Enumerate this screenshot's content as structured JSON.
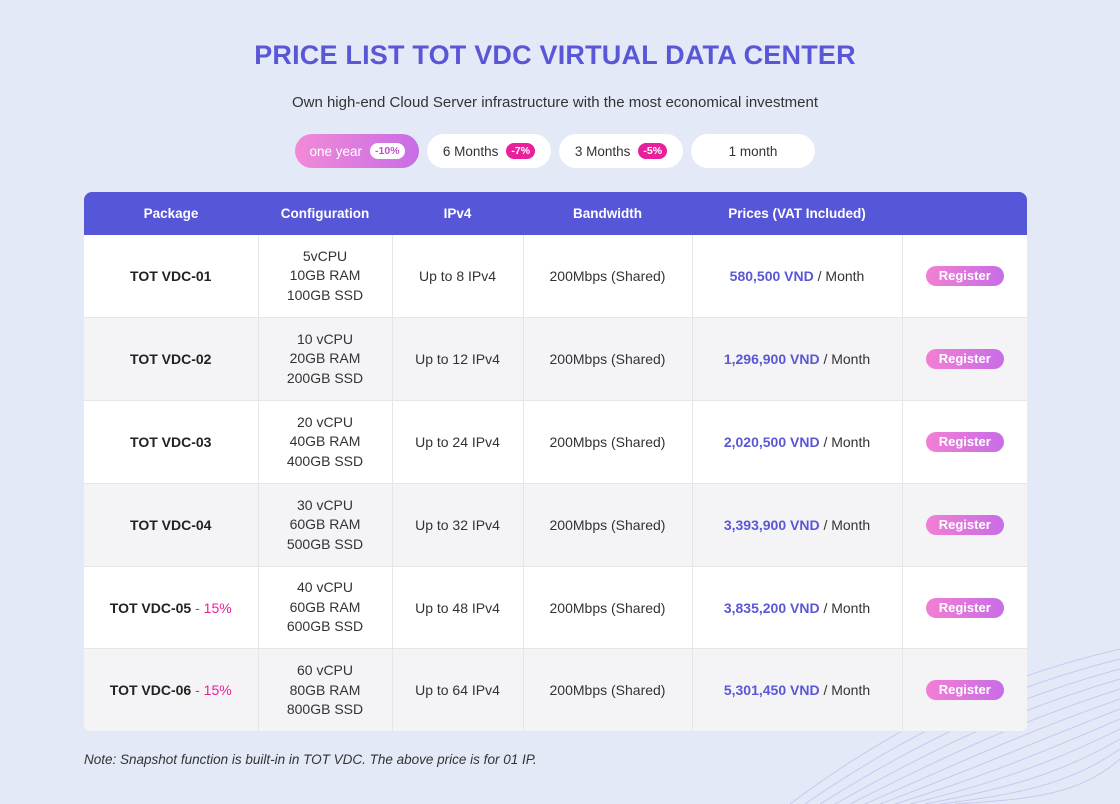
{
  "title": "PRICE LIST TOT VDC VIRTUAL DATA CENTER",
  "subtitle": "Own high-end Cloud Server infrastructure with the most economical investment",
  "tabs": [
    {
      "label": "one year",
      "badge": "-10%",
      "active": true
    },
    {
      "label": "6 Months",
      "badge": "-7%",
      "active": false
    },
    {
      "label": "3 Months",
      "badge": "-5%",
      "active": false
    },
    {
      "label": "1 month",
      "badge": "",
      "active": false
    }
  ],
  "table": {
    "headers": [
      "Package",
      "Configuration",
      "IPv4",
      "Bandwidth",
      "Prices (VAT Included)",
      ""
    ],
    "rows": [
      {
        "package": "TOT VDC-01",
        "discount": "",
        "cpu": "5vCPU",
        "ram": "10GB RAM",
        "ssd": "100GB SSD",
        "ipv4": "Up to 8 IPv4",
        "bandwidth": "200Mbps (Shared)",
        "price": "580,500 VND",
        "period": " / Month",
        "button": "Register"
      },
      {
        "package": "TOT VDC-02",
        "discount": "",
        "cpu": "10 vCPU",
        "ram": "20GB RAM",
        "ssd": "200GB SSD",
        "ipv4": "Up to 12 IPv4",
        "bandwidth": "200Mbps (Shared)",
        "price": "1,296,900 VND",
        "period": " / Month",
        "button": "Register"
      },
      {
        "package": "TOT VDC-03",
        "discount": "",
        "cpu": "20 vCPU",
        "ram": "40GB RAM",
        "ssd": "400GB SSD",
        "ipv4": "Up to 24 IPv4",
        "bandwidth": "200Mbps (Shared)",
        "price": "2,020,500 VND",
        "period": " / Month",
        "button": "Register"
      },
      {
        "package": "TOT VDC-04",
        "discount": "",
        "cpu": "30 vCPU",
        "ram": "60GB RAM",
        "ssd": "500GB SSD",
        "ipv4": "Up to 32 IPv4",
        "bandwidth": "200Mbps (Shared)",
        "price": "3,393,900 VND",
        "period": " / Month",
        "button": "Register"
      },
      {
        "package": "TOT VDC-05",
        "discount": " - 15%",
        "cpu": "40 vCPU",
        "ram": "60GB RAM",
        "ssd": "600GB SSD",
        "ipv4": "Up to 48 IPv4",
        "bandwidth": "200Mbps (Shared)",
        "price": "3,835,200 VND",
        "period": " / Month",
        "button": "Register"
      },
      {
        "package": "TOT VDC-06",
        "discount": " - 15%",
        "cpu": "60 vCPU",
        "ram": "80GB RAM",
        "ssd": "800GB SSD",
        "ipv4": "Up to 64 IPv4",
        "bandwidth": "200Mbps (Shared)",
        "price": "5,301,450 VND",
        "period": " / Month",
        "button": "Register"
      }
    ]
  },
  "note": "Note: Snapshot function is built-in in TOT VDC. The above price is for 01 IP.",
  "colors": {
    "accent": "#5a57d6",
    "header": "#5656d8",
    "badge": "#e8209c",
    "button_start": "#f27fd4",
    "button_end": "#c76de6"
  }
}
